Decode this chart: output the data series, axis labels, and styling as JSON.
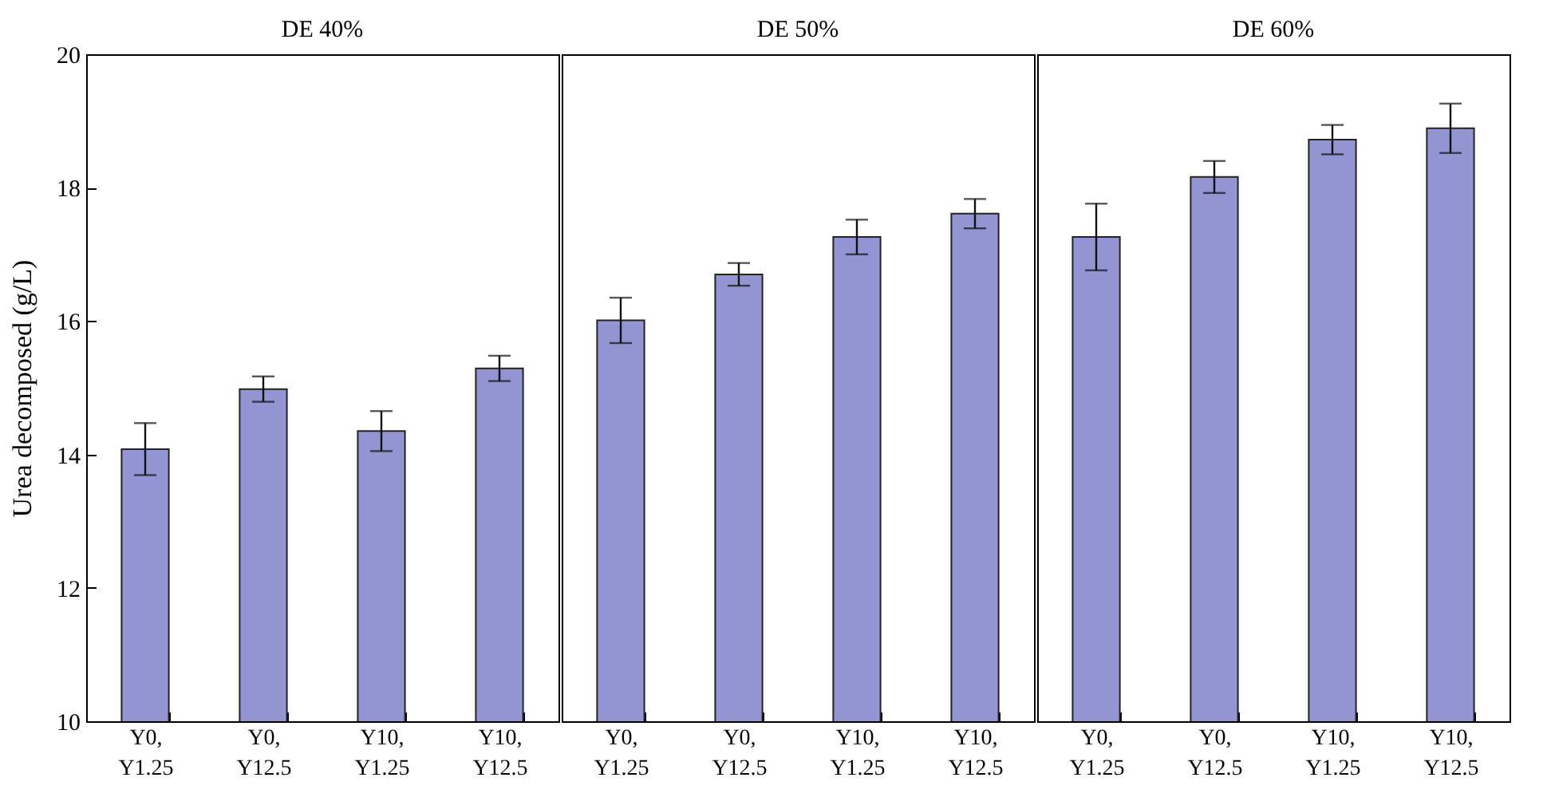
{
  "chart_data": [
    {
      "type": "bar",
      "title": "DE 40%",
      "ylabel": "Urea decomposed (g/L)",
      "categories": [
        "Y0, Y1.25",
        "Y0, Y12.5",
        "Y10, Y1.25",
        "Y10, Y12.5"
      ],
      "values": [
        14.08,
        14.98,
        14.35,
        15.29
      ],
      "errors": [
        0.39,
        0.19,
        0.3,
        0.19
      ],
      "color": "#9395d3",
      "ylim": [
        10,
        20
      ],
      "yticks": [
        10,
        12,
        14,
        16,
        18,
        20
      ]
    },
    {
      "type": "bar",
      "title": "DE 50%",
      "categories": [
        "Y0, Y1.25",
        "Y0, Y12.5",
        "Y10, Y1.25",
        "Y10, Y12.5"
      ],
      "values": [
        16.01,
        16.7,
        17.26,
        17.61
      ],
      "errors": [
        0.34,
        0.17,
        0.26,
        0.22
      ],
      "color": "#9395d3",
      "ylim": [
        10,
        20
      ],
      "yticks": [
        10,
        12,
        14,
        16,
        18,
        20
      ],
      "tick_labels": "x"
    },
    {
      "type": "bar",
      "title": "DE 60%",
      "categories": [
        "Y0, Y1.25",
        "Y0, Y12.5",
        "Y10, Y1.25",
        "Y10, Y12.5"
      ],
      "values": [
        17.26,
        18.16,
        18.72,
        18.89
      ],
      "errors": [
        0.5,
        0.24,
        0.22,
        0.37
      ],
      "color": "#9395d3",
      "ylim": [
        10,
        20
      ],
      "yticks": [
        10,
        12,
        14,
        16,
        18,
        20
      ],
      "tick_labels": "x"
    }
  ]
}
